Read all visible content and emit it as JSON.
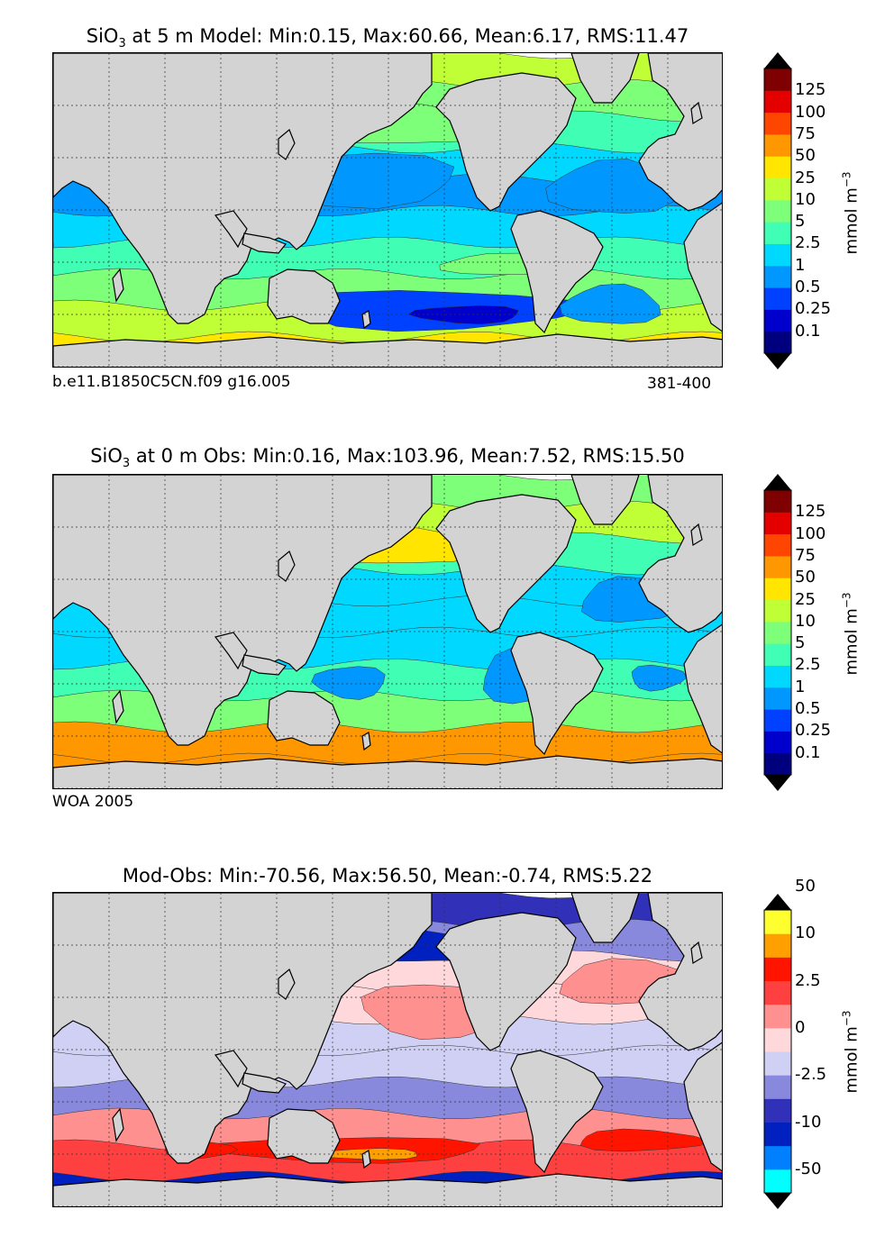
{
  "panels": [
    {
      "id": "model",
      "title_prefix": "SiO",
      "title_sub": "3",
      "title_rest": " at 5 m Model: Min:0.15, Max:60.66, Mean:6.17, RMS:11.47",
      "caption_left": "b.e11.B1850C5CN.f09 g16.005",
      "caption_right": "381-400",
      "colorbar": {
        "colors": [
          "#00007f",
          "#0000cd",
          "#0040ff",
          "#0098ff",
          "#00d8ff",
          "#40ffb4",
          "#7dff7a",
          "#c0ff36",
          "#ffe500",
          "#ff9800",
          "#ff4600",
          "#e50000",
          "#7f0000"
        ],
        "ticks": [
          "0.1",
          "0.25",
          "0.5",
          "1",
          "2.5",
          "5",
          "10",
          "25",
          "50",
          "75",
          "100",
          "125"
        ],
        "label": "mmol m",
        "label_exp": "−3"
      }
    },
    {
      "id": "obs",
      "title_prefix": "SiO",
      "title_sub": "3",
      "title_rest": " at 0 m Obs: Min:0.16, Max:103.96, Mean:7.52, RMS:15.50",
      "caption_left": "WOA 2005",
      "caption_right": "",
      "colorbar": {
        "colors": [
          "#00007f",
          "#0000cd",
          "#0040ff",
          "#0098ff",
          "#00d8ff",
          "#40ffb4",
          "#7dff7a",
          "#c0ff36",
          "#ffe500",
          "#ff9800",
          "#ff4600",
          "#e50000",
          "#7f0000"
        ],
        "ticks": [
          "0.1",
          "0.25",
          "0.5",
          "1",
          "2.5",
          "5",
          "10",
          "25",
          "50",
          "75",
          "100",
          "125"
        ],
        "label": "mmol m",
        "label_exp": "−3"
      }
    },
    {
      "id": "diff",
      "title_prefix": "",
      "title_sub": "",
      "title_rest": "Mod-Obs: Min:-70.56, Max:56.50, Mean:-0.74, RMS:5.22",
      "caption_left": "",
      "caption_right": "",
      "colorbar": {
        "colors": [
          "#00ffff",
          "#0080ff",
          "#0020c0",
          "#3030b8",
          "#8888dc",
          "#d0d0f4",
          "#ffd8dc",
          "#ff9090",
          "#ff4040",
          "#ff1400",
          "#ffa000",
          "#ffff30"
        ],
        "ticks": [
          "-50",
          "-10",
          "-2.5",
          "0",
          "2.5",
          "10",
          "50"
        ],
        "label": "mmol m",
        "label_exp": "−3"
      }
    }
  ]
}
